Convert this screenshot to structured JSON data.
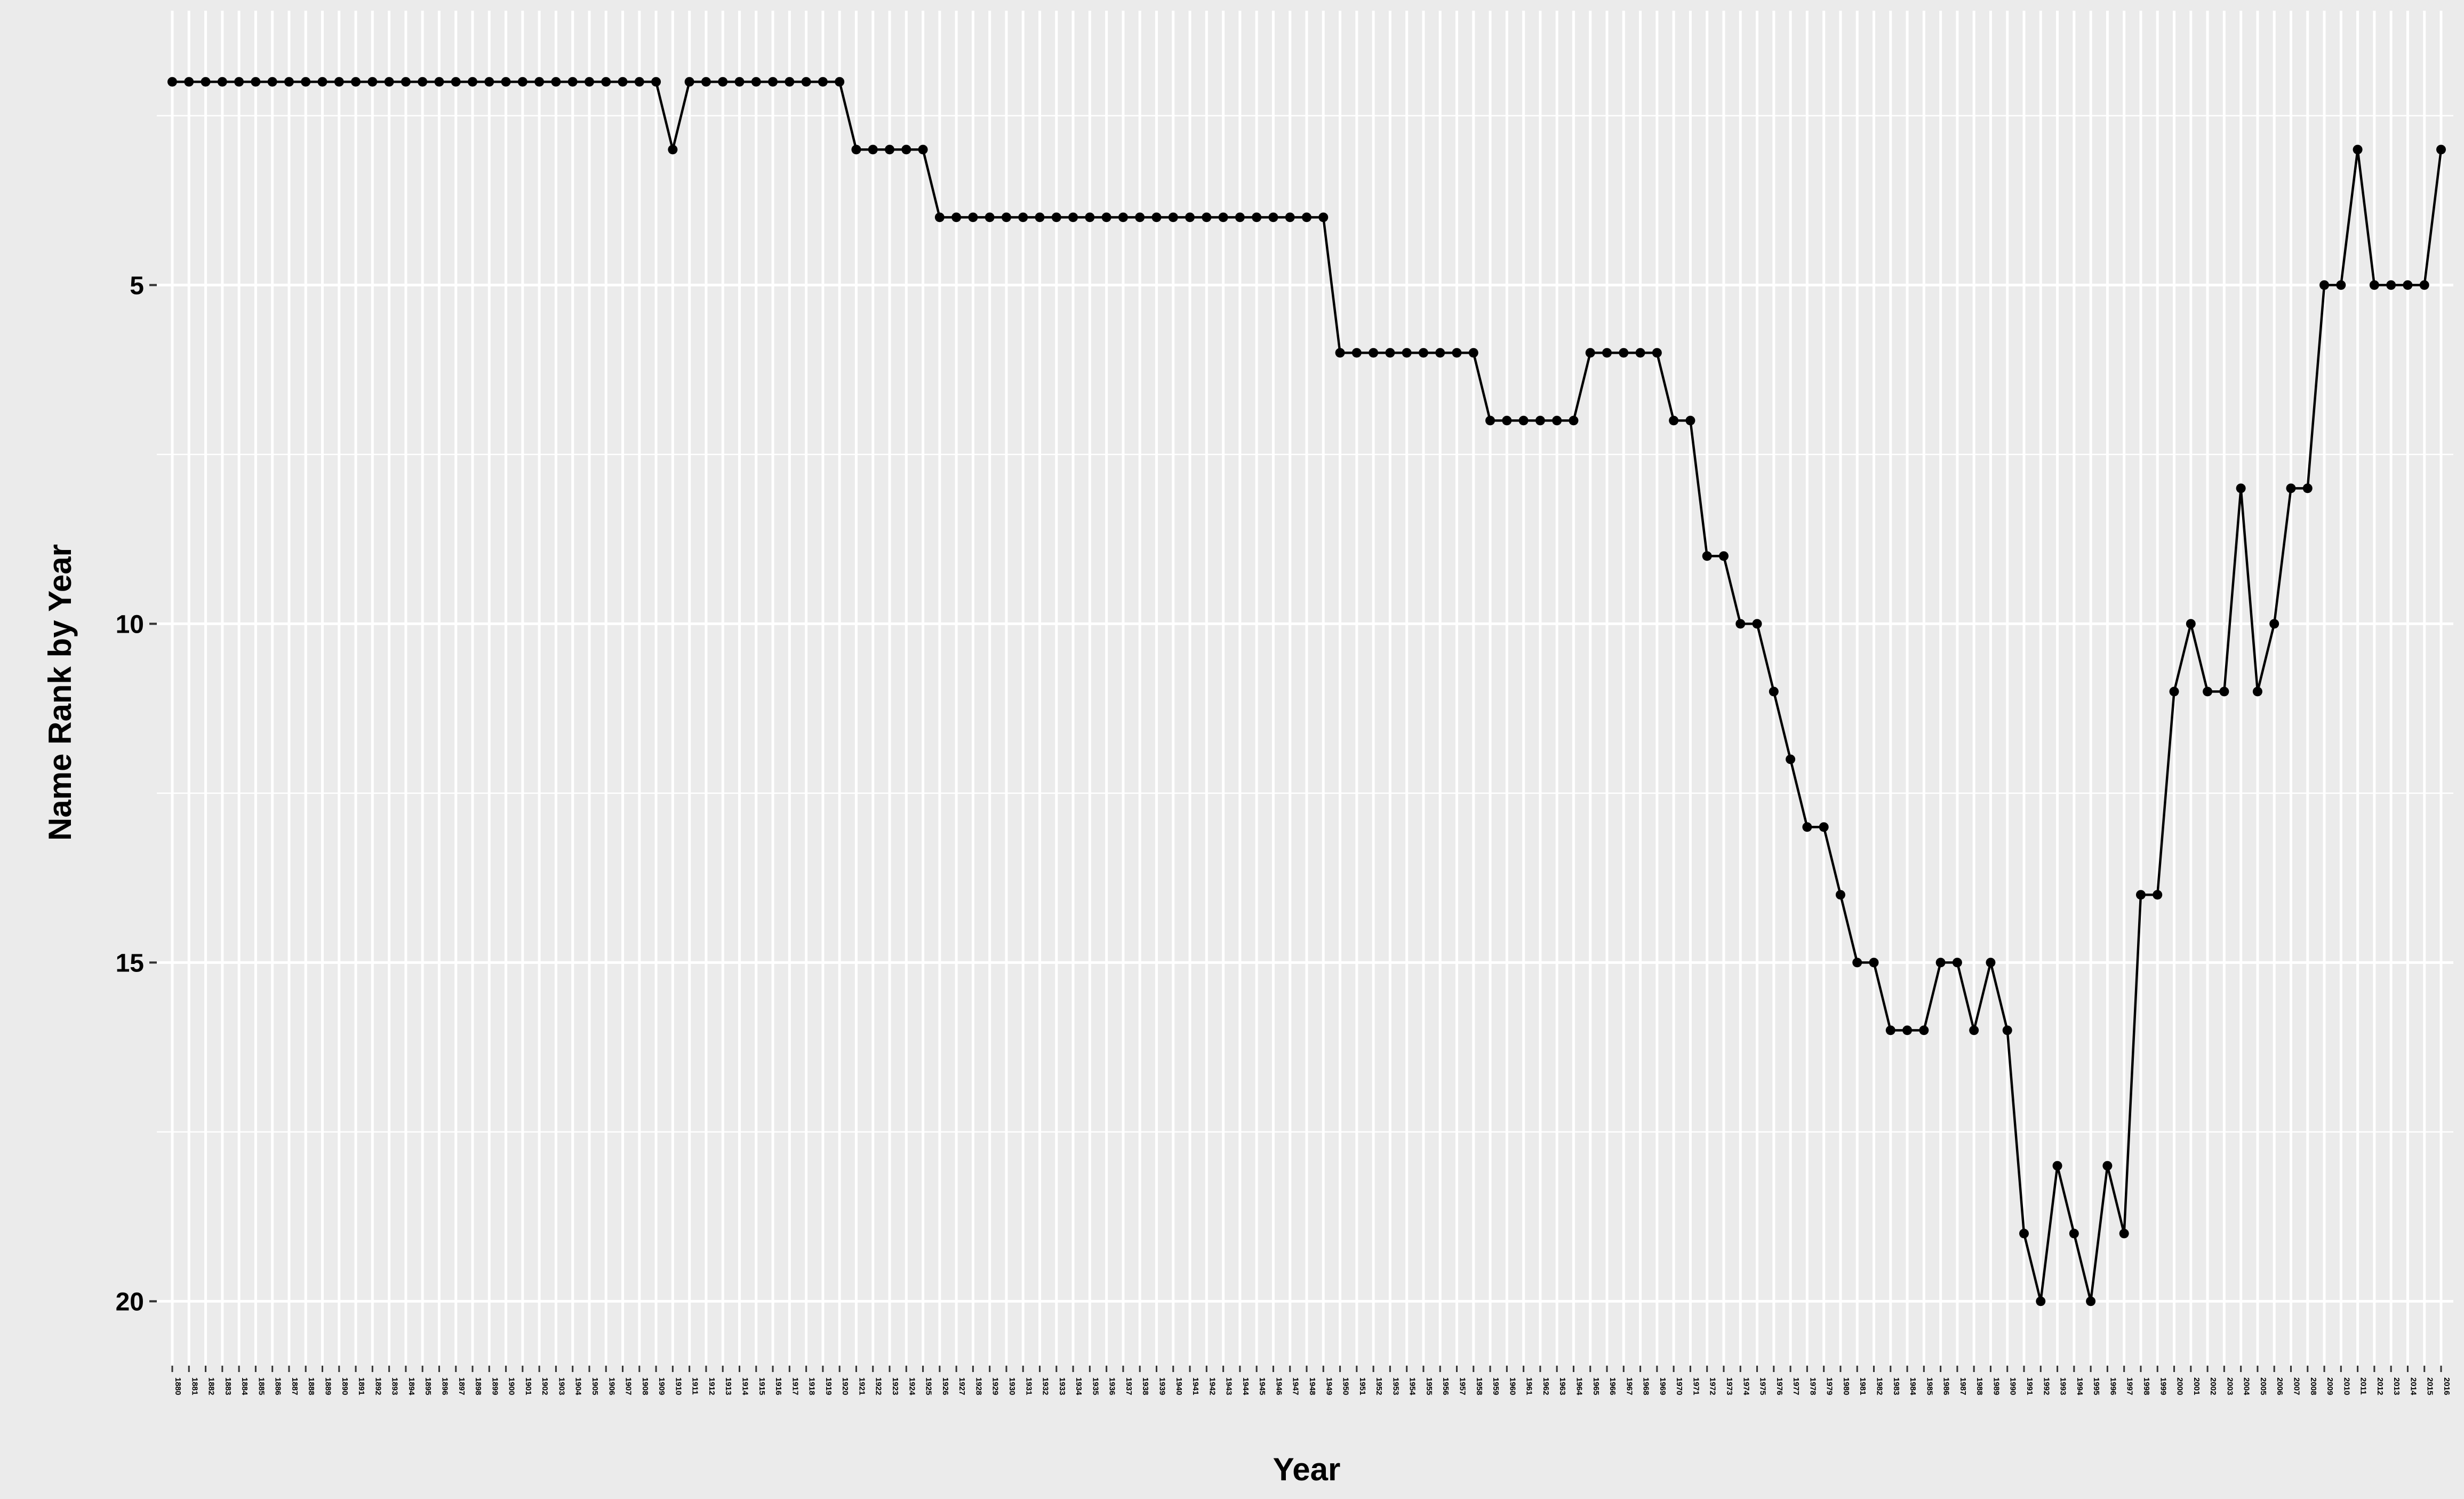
{
  "chart_data": {
    "type": "line",
    "title": "",
    "xlabel": "Year",
    "ylabel": "Name Rank by Year",
    "y_reversed": true,
    "y_ticks": [
      5,
      10,
      15,
      20
    ],
    "ylim": [
      20.95,
      0.95
    ],
    "x_range": [
      1880,
      2016
    ],
    "grid": true,
    "points_marked": true,
    "colors": {
      "panel": "#ebebeb",
      "grid": "#ffffff",
      "line": "#000000"
    },
    "x": [
      1880,
      1881,
      1882,
      1883,
      1884,
      1885,
      1886,
      1887,
      1888,
      1889,
      1890,
      1891,
      1892,
      1893,
      1894,
      1895,
      1896,
      1897,
      1898,
      1899,
      1900,
      1901,
      1902,
      1903,
      1904,
      1905,
      1906,
      1907,
      1908,
      1909,
      1910,
      1911,
      1912,
      1913,
      1914,
      1915,
      1916,
      1917,
      1918,
      1919,
      1920,
      1921,
      1922,
      1923,
      1924,
      1925,
      1926,
      1927,
      1928,
      1929,
      1930,
      1931,
      1932,
      1933,
      1934,
      1935,
      1936,
      1937,
      1938,
      1939,
      1940,
      1941,
      1942,
      1943,
      1944,
      1945,
      1946,
      1947,
      1948,
      1949,
      1950,
      1951,
      1952,
      1953,
      1954,
      1955,
      1956,
      1957,
      1958,
      1959,
      1960,
      1961,
      1962,
      1963,
      1964,
      1965,
      1966,
      1967,
      1968,
      1969,
      1970,
      1971,
      1972,
      1973,
      1974,
      1975,
      1976,
      1977,
      1978,
      1979,
      1980,
      1981,
      1982,
      1983,
      1984,
      1985,
      1986,
      1987,
      1988,
      1989,
      1990,
      1991,
      1992,
      1993,
      1994,
      1995,
      1996,
      1997,
      1998,
      1999,
      2000,
      2001,
      2002,
      2003,
      2004,
      2005,
      2006,
      2007,
      2008,
      2009,
      2010,
      2011,
      2012,
      2013,
      2014,
      2015,
      2016
    ],
    "y": [
      2,
      2,
      2,
      2,
      2,
      2,
      2,
      2,
      2,
      2,
      2,
      2,
      2,
      2,
      2,
      2,
      2,
      2,
      2,
      2,
      2,
      2,
      2,
      2,
      2,
      2,
      2,
      2,
      2,
      2,
      3,
      2,
      2,
      2,
      2,
      2,
      2,
      2,
      2,
      2,
      2,
      3,
      3,
      3,
      3,
      3,
      4,
      4,
      4,
      4,
      4,
      4,
      4,
      4,
      4,
      4,
      4,
      4,
      4,
      4,
      4,
      4,
      4,
      4,
      4,
      4,
      4,
      4,
      4,
      4,
      6,
      6,
      6,
      6,
      6,
      6,
      6,
      6,
      6,
      7,
      7,
      7,
      7,
      7,
      7,
      6,
      6,
      6,
      6,
      6,
      7,
      7,
      9,
      9,
      10,
      10,
      11,
      12,
      13,
      13,
      14,
      15,
      15,
      16,
      16,
      16,
      15,
      15,
      16,
      15,
      16,
      19,
      20,
      18,
      19,
      20,
      18,
      19,
      14,
      14,
      11,
      10,
      11,
      11,
      8,
      11,
      10,
      8,
      8,
      5,
      5,
      3,
      5,
      5,
      5,
      5,
      3
    ]
  }
}
